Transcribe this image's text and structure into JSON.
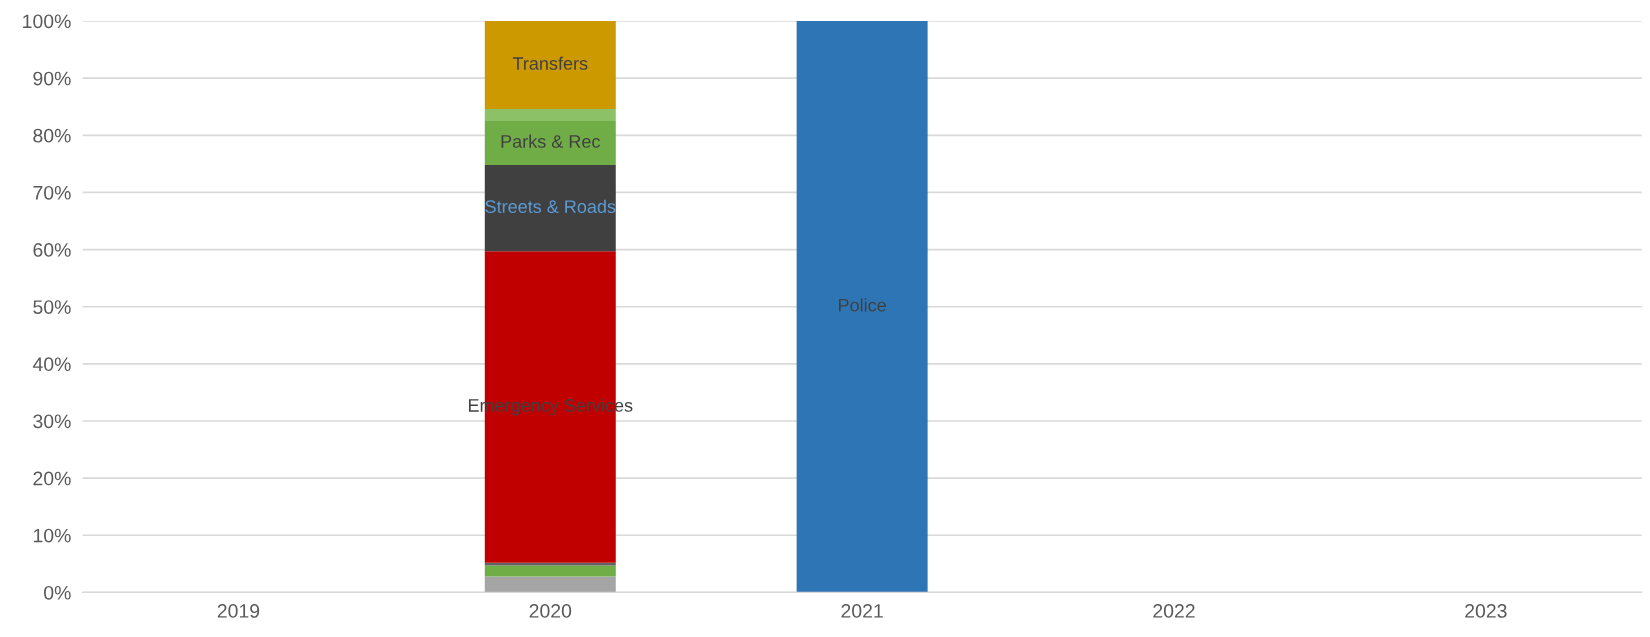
{
  "chart_data": {
    "type": "bar",
    "stacked": true,
    "categories": [
      "2019",
      "2020",
      "2021",
      "2022",
      "2023"
    ],
    "series": [
      {
        "color": "#a5a5a5",
        "values": [
          null,
          2.8,
          null,
          null,
          null
        ]
      },
      {
        "color": "#70ad47",
        "values": [
          null,
          1.9,
          null,
          null,
          null
        ]
      },
      {
        "color": "#636363",
        "values": [
          null,
          0.5,
          null,
          null,
          null
        ]
      },
      {
        "name": "Emergency Services",
        "color": "#c00000",
        "values": [
          null,
          54.5,
          null,
          null,
          null
        ]
      },
      {
        "name": "Streets & Roads",
        "color": "#404040",
        "values": [
          null,
          15.1,
          null,
          null,
          null
        ]
      },
      {
        "name": "Parks & Rec",
        "color": "#70ad47",
        "values": [
          null,
          7.7,
          null,
          null,
          null
        ]
      },
      {
        "color": "#8cc168",
        "values": [
          null,
          2.1,
          null,
          null,
          null
        ]
      },
      {
        "name": "Transfers",
        "color": "#cc9900",
        "values": [
          null,
          15.4,
          null,
          null,
          null
        ]
      },
      {
        "name": "Police",
        "color": "#2e75b6",
        "values": [
          null,
          null,
          100,
          null,
          null
        ]
      }
    ],
    "ylim": [
      0,
      100
    ],
    "yticks": [
      {
        "value": 0,
        "label": "0%"
      },
      {
        "value": 10,
        "label": "10%"
      },
      {
        "value": 20,
        "label": "20%"
      },
      {
        "value": 30,
        "label": "30%"
      },
      {
        "value": 40,
        "label": "40%"
      },
      {
        "value": 50,
        "label": "50%"
      },
      {
        "value": 60,
        "label": "60%"
      },
      {
        "value": 70,
        "label": "70%"
      },
      {
        "value": 80,
        "label": "80%"
      },
      {
        "value": 90,
        "label": "90%"
      },
      {
        "value": 100,
        "label": "100%"
      }
    ],
    "grid": "y",
    "legend": false
  }
}
